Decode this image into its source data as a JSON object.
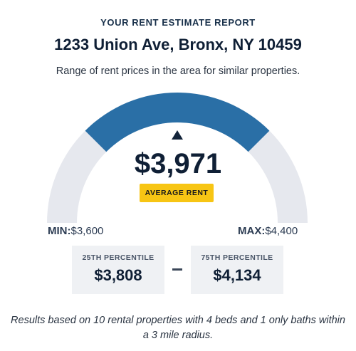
{
  "report": {
    "eyebrow": "YOUR RENT ESTIMATE REPORT",
    "address": "1233 Union Ave, Bronx, NY 10459",
    "subtitle": "Range of rent prices in the area for similar properties."
  },
  "estimate": {
    "average_value": "$3,971",
    "average_label": "AVERAGE RENT",
    "min_label": "MIN:",
    "min_value": "$3,600",
    "max_label": "MAX:",
    "max_value": "$4,400"
  },
  "percentiles": {
    "p25_label": "25TH PERCENTILE",
    "p25_value": "$3,808",
    "p75_label": "75TH PERCENTILE",
    "p75_value": "$4,134"
  },
  "footnote": "Results based on 10 rental properties with 4 beds and 1 only baths within a 3 mile radius.",
  "colors": {
    "gauge_track": "#e6e8ee",
    "gauge_range": "#2a6fa6",
    "badge": "#f7c514",
    "card_bg": "#eff1f4"
  },
  "icons": {
    "marker": "triangle-up-marker-icon"
  }
}
